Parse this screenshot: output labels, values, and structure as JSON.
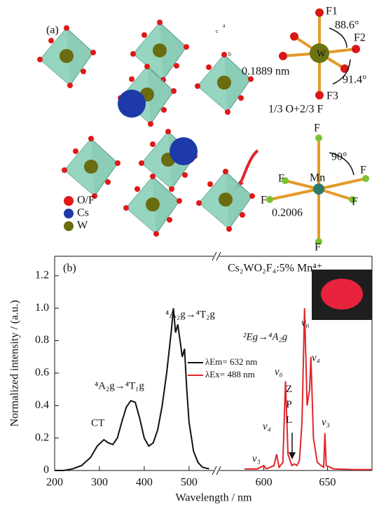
{
  "panel_a": {
    "label": "(a)",
    "legend": [
      "O/F",
      "Cs",
      "W"
    ],
    "axes": [
      "a",
      "c",
      "b"
    ],
    "w_site": {
      "center": "W",
      "f1": "F1",
      "f2": "F2",
      "f3": "F3",
      "angle1": "88.6°",
      "angle2": "91.4°",
      "bond": "0.1889 nm",
      "occupancy": "1/3 O+2/3 F"
    },
    "mn_site": {
      "center": "Mn",
      "ligands": [
        "F",
        "F",
        "F",
        "F",
        "F",
        "F"
      ],
      "angle": "90°",
      "bond": "0.2006"
    }
  },
  "chart_data": [
    {
      "type": "line",
      "panel_label": "(b)",
      "ylabel": "Normalized intensity / (a.u.)",
      "xlabel": "Wavelength / nm",
      "xlim": [
        200,
        555
      ],
      "xticks": [
        200,
        300,
        400,
        500
      ],
      "ylim": [
        0,
        1.32
      ],
      "yticks": [
        0,
        0.2,
        0.4,
        0.6,
        0.8,
        {
          "value": 1,
          "label": "1.0"
        },
        1.2
      ],
      "annotations": [
        "CT",
        "⁴A₂g→⁴T₁g",
        "⁴A₂g→⁴T₂g"
      ],
      "series": [
        {
          "name": "λEm= 632 nm",
          "color": "#111111",
          "x": [
            200,
            220,
            240,
            260,
            280,
            295,
            310,
            320,
            330,
            340,
            350,
            360,
            370,
            380,
            390,
            400,
            410,
            420,
            430,
            440,
            450,
            460,
            465,
            470,
            475,
            480,
            485,
            490,
            495,
            500,
            510,
            520,
            530,
            545
          ],
          "values": [
            0,
            0,
            0.01,
            0.03,
            0.08,
            0.15,
            0.19,
            0.17,
            0.16,
            0.2,
            0.3,
            0.39,
            0.43,
            0.42,
            0.32,
            0.2,
            0.15,
            0.17,
            0.25,
            0.4,
            0.6,
            0.85,
            1.0,
            0.85,
            0.9,
            0.8,
            0.7,
            0.75,
            0.5,
            0.3,
            0.12,
            0.05,
            0.02,
            0.01
          ]
        }
      ]
    },
    {
      "type": "line",
      "title": "Cs₂WO₂F₄:5% Mn⁴⁺",
      "xlim": [
        565,
        685
      ],
      "xticks": [
        600,
        650
      ],
      "ylim": [
        0,
        1.32
      ],
      "annotations": [
        "ν₃",
        "ν₄",
        "ν₆",
        "ZPL",
        "ν₆",
        "²Eg→⁴A₂g",
        "ν₄",
        "ν₃"
      ],
      "series": [
        {
          "name": "λEx= 488 nm",
          "color": "#e0262b",
          "x": [
            585,
            595,
            600,
            602,
            608,
            610,
            612,
            615,
            617,
            619,
            622,
            624,
            626,
            628,
            630,
            632,
            634,
            636,
            637,
            639,
            642,
            645,
            647,
            648,
            649,
            655,
            670,
            685
          ],
          "values": [
            0.01,
            0.01,
            0.03,
            0.01,
            0.03,
            0.1,
            0.02,
            0.05,
            0.55,
            0.1,
            0.03,
            0.04,
            0.03,
            0.06,
            0.3,
            1.0,
            0.4,
            0.5,
            0.7,
            0.2,
            0.05,
            0.03,
            0.02,
            0.23,
            0.03,
            0.01,
            0.005,
            0.005
          ]
        }
      ]
    }
  ]
}
